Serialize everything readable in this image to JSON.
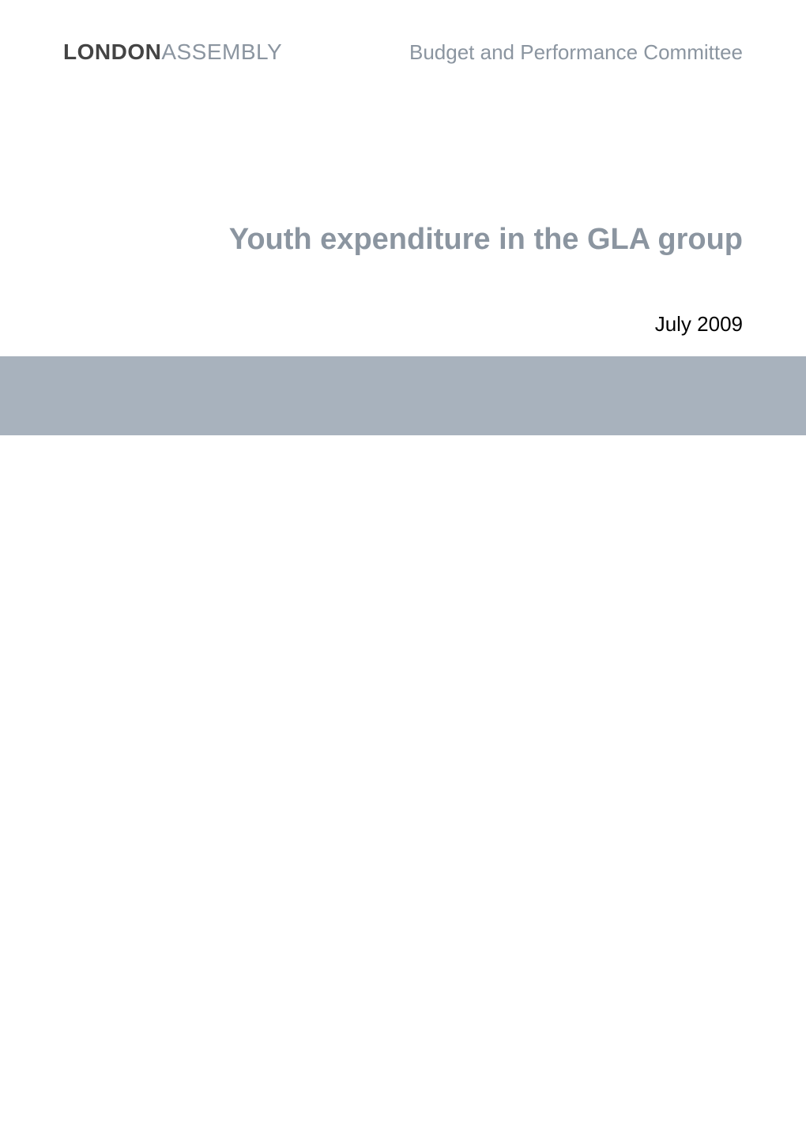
{
  "header": {
    "logo_bold": "LONDON",
    "logo_light": "ASSEMBLY",
    "committee_name": "Budget and Performance Committee"
  },
  "main": {
    "title": "Youth expenditure in the GLA group",
    "date": "July 2009"
  },
  "styling": {
    "logo_color": "#444444",
    "logo_fontsize": 28,
    "committee_color": "#8b95a0",
    "committee_fontsize": 26,
    "title_color": "#8b95a0",
    "title_fontsize": 38,
    "date_color": "#000000",
    "date_fontsize": 26,
    "accent_bar_color": "#a8b2bd",
    "background_color": "#ffffff"
  }
}
